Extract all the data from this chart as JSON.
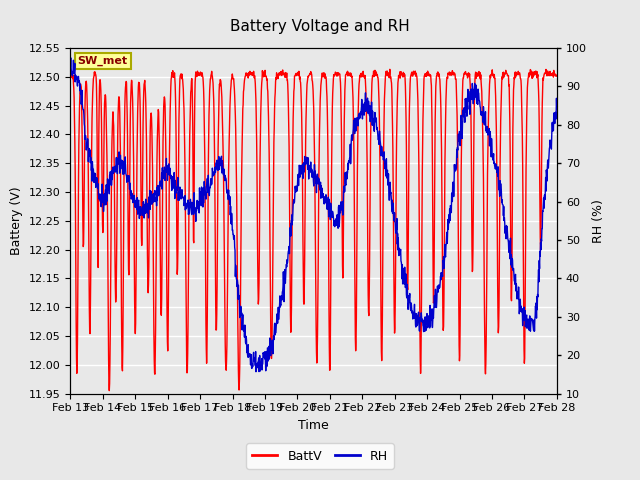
{
  "title": "Battery Voltage and RH",
  "xlabel": "Time",
  "ylabel_left": "Battery (V)",
  "ylabel_right": "RH (%)",
  "annotation": "SW_met",
  "ylim_left": [
    11.95,
    12.55
  ],
  "ylim_right": [
    10,
    100
  ],
  "yticks_left": [
    11.95,
    12.0,
    12.05,
    12.1,
    12.15,
    12.2,
    12.25,
    12.3,
    12.35,
    12.4,
    12.45,
    12.5,
    12.55
  ],
  "yticks_right": [
    10,
    20,
    30,
    40,
    50,
    60,
    70,
    80,
    90,
    100
  ],
  "xtick_labels": [
    "Feb 13",
    "Feb 14",
    "Feb 15",
    "Feb 16",
    "Feb 17",
    "Feb 18",
    "Feb 19",
    "Feb 20",
    "Feb 21",
    "Feb 22",
    "Feb 23",
    "Feb 24",
    "Feb 25",
    "Feb 26",
    "Feb 27",
    "Feb 28"
  ],
  "color_battv": "#FF0000",
  "color_rh": "#0000CC",
  "bg_color": "#E8E8E8",
  "plot_bg_color": "#E8E8E8",
  "legend_battv": "BattV",
  "legend_rh": "RH",
  "linewidth": 1.0,
  "annotation_facecolor": "#FFFF99",
  "annotation_edgecolor": "#AAAA00",
  "annotation_textcolor": "#880000"
}
